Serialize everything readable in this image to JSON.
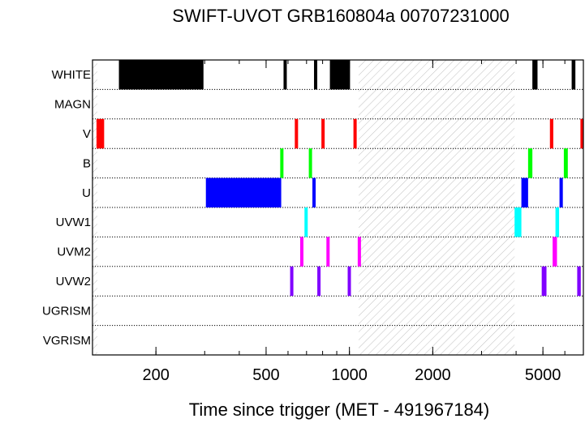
{
  "chart_data": {
    "type": "timeline",
    "title": "SWIFT-UVOT GRB160804a 00707231000",
    "xlabel": "Time since trigger (MET - 491967184)",
    "ylabel": "",
    "xscale": "log",
    "xlim": [
      118,
      7000
    ],
    "xticks": [
      {
        "value": 200,
        "label": "200"
      },
      {
        "value": 500,
        "label": "500"
      },
      {
        "value": 1000,
        "label": "1000"
      },
      {
        "value": 2000,
        "label": "2000"
      },
      {
        "value": 5000,
        "label": "5000"
      }
    ],
    "grid": "row-separators",
    "filters": [
      {
        "name": "WHITE",
        "color": "#000000",
        "segments": [
          [
            147,
            297
          ],
          [
            581,
            591
          ],
          [
            751,
            759
          ],
          [
            850,
            1005
          ],
          [
            4580,
            4780
          ],
          [
            6350,
            6550
          ]
        ]
      },
      {
        "name": "MAGN",
        "color": "#000000",
        "segments": []
      },
      {
        "name": "V",
        "color": "#ff0000",
        "segments": [
          [
            122,
            130
          ],
          [
            639,
            648
          ],
          [
            798,
            808
          ],
          [
            1044,
            1052
          ],
          [
            5300,
            5450
          ],
          [
            6850,
            7000
          ]
        ]
      },
      {
        "name": "B",
        "color": "#00ff00",
        "segments": [
          [
            564,
            576
          ],
          [
            716,
            730
          ],
          [
            4420,
            4580
          ],
          [
            5950,
            6150
          ]
        ]
      },
      {
        "name": "U",
        "color": "#0000ff",
        "segments": [
          [
            303,
            567
          ],
          [
            738,
            752
          ],
          [
            4180,
            4420
          ],
          [
            5740,
            5900
          ]
        ]
      },
      {
        "name": "UVW1",
        "color": "#00ffff",
        "segments": [
          [
            689,
            706
          ],
          [
            3950,
            4180
          ],
          [
            5550,
            5720
          ]
        ]
      },
      {
        "name": "UVM2",
        "color": "#ff00ff",
        "segments": [
          [
            667,
            679
          ],
          [
            832,
            842
          ],
          [
            1081,
            1091
          ],
          [
            5420,
            5620
          ]
        ]
      },
      {
        "name": "UVW2",
        "color": "#8000ff",
        "segments": [
          [
            612,
            626
          ],
          [
            770,
            782
          ],
          [
            993,
            1005
          ],
          [
            4950,
            5150
          ],
          [
            6650,
            6850
          ]
        ]
      },
      {
        "name": "UGRISM",
        "color": "#000000",
        "segments": []
      },
      {
        "name": "VGRISM",
        "color": "#000000",
        "segments": []
      }
    ],
    "shaded_interval": [
      1080,
      3950
    ]
  }
}
